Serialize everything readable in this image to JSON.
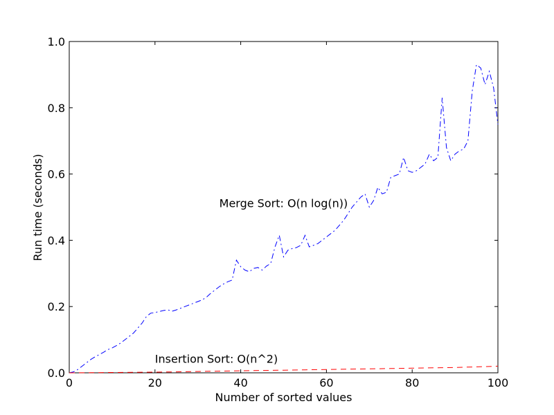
{
  "chart_data": {
    "type": "line",
    "title": "",
    "xlabel": "Number of sorted values",
    "ylabel": "Run time (seconds)",
    "xlim": [
      0,
      100
    ],
    "ylim": [
      0,
      1.0
    ],
    "xticks": [
      0,
      20,
      40,
      60,
      80,
      100
    ],
    "xtick_labels": [
      "0",
      "20",
      "40",
      "60",
      "80",
      "100"
    ],
    "yticks": [
      0.0,
      0.2,
      0.4,
      0.6,
      0.8,
      1.0
    ],
    "ytick_labels": [
      "0.0",
      "0.2",
      "0.4",
      "0.6",
      "0.8",
      "1.0"
    ],
    "grid": false,
    "series": [
      {
        "color": "#0000ff",
        "linestyle": "dashdot",
        "x": [
          0,
          1,
          2,
          3,
          4,
          5,
          6,
          7,
          8,
          9,
          10,
          11,
          12,
          13,
          14,
          15,
          16,
          17,
          18,
          19,
          20,
          21,
          22,
          23,
          24,
          25,
          26,
          27,
          28,
          29,
          30,
          31,
          32,
          33,
          34,
          35,
          36,
          37,
          38,
          39,
          40,
          41,
          42,
          43,
          44,
          45,
          46,
          47,
          48,
          49,
          50,
          51,
          52,
          53,
          54,
          55,
          56,
          57,
          58,
          59,
          60,
          61,
          62,
          63,
          64,
          65,
          66,
          67,
          68,
          69,
          70,
          71,
          72,
          73,
          74,
          75,
          76,
          77,
          78,
          79,
          80,
          81,
          82,
          83,
          84,
          85,
          86,
          87,
          88,
          89,
          90,
          91,
          92,
          93,
          94,
          95,
          96,
          97,
          98,
          99,
          100
        ],
        "y": [
          0.0,
          0.003,
          0.01,
          0.02,
          0.03,
          0.04,
          0.048,
          0.055,
          0.062,
          0.07,
          0.075,
          0.082,
          0.09,
          0.1,
          0.11,
          0.12,
          0.135,
          0.15,
          0.17,
          0.18,
          0.182,
          0.185,
          0.188,
          0.19,
          0.186,
          0.19,
          0.195,
          0.2,
          0.205,
          0.21,
          0.215,
          0.22,
          0.228,
          0.24,
          0.25,
          0.26,
          0.268,
          0.275,
          0.28,
          0.34,
          0.32,
          0.31,
          0.305,
          0.315,
          0.318,
          0.31,
          0.322,
          0.33,
          0.38,
          0.415,
          0.35,
          0.37,
          0.375,
          0.378,
          0.385,
          0.415,
          0.38,
          0.385,
          0.39,
          0.4,
          0.41,
          0.42,
          0.43,
          0.445,
          0.46,
          0.48,
          0.5,
          0.515,
          0.53,
          0.54,
          0.5,
          0.52,
          0.56,
          0.54,
          0.545,
          0.59,
          0.595,
          0.6,
          0.65,
          0.61,
          0.605,
          0.61,
          0.62,
          0.63,
          0.66,
          0.64,
          0.65,
          0.83,
          0.68,
          0.64,
          0.66,
          0.67,
          0.675,
          0.7,
          0.85,
          0.93,
          0.92,
          0.87,
          0.91,
          0.86,
          0.75
        ]
      },
      {
        "color": "#ff0000",
        "linestyle": "dashed",
        "x": [
          0,
          5,
          10,
          15,
          20,
          25,
          30,
          35,
          40,
          45,
          50,
          55,
          60,
          65,
          70,
          75,
          80,
          85,
          90,
          95,
          100
        ],
        "y": [
          0.0,
          0.0005,
          0.001,
          0.0015,
          0.002,
          0.003,
          0.004,
          0.005,
          0.006,
          0.007,
          0.008,
          0.009,
          0.01,
          0.011,
          0.012,
          0.013,
          0.014,
          0.015,
          0.016,
          0.018,
          0.02
        ]
      }
    ],
    "annotations": [
      {
        "text": "Merge Sort: O(n log(n))",
        "x": 35,
        "y": 0.5
      },
      {
        "text": "Insertion Sort: O(n^2)",
        "x": 20,
        "y": 0.03
      }
    ]
  }
}
